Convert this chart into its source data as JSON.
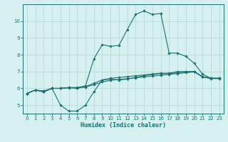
{
  "title": "",
  "xlabel": "Humidex (Indice chaleur)",
  "xlim": [
    -0.5,
    23.5
  ],
  "ylim": [
    4.5,
    11.0
  ],
  "yticks": [
    5,
    6,
    7,
    8,
    9,
    10
  ],
  "xticks": [
    0,
    1,
    2,
    3,
    4,
    5,
    6,
    7,
    8,
    9,
    10,
    11,
    12,
    13,
    14,
    15,
    16,
    17,
    18,
    19,
    20,
    21,
    22,
    23
  ],
  "background_color": "#d6f0f0",
  "grid_color": "#b8dada",
  "line_color": "#1a7070",
  "line1_x": [
    0,
    1,
    2,
    3,
    4,
    5,
    6,
    7,
    8,
    9,
    10,
    11,
    12,
    13,
    14,
    15,
    16,
    17,
    18,
    19,
    20,
    21,
    22,
    23
  ],
  "line1_y": [
    5.7,
    5.9,
    5.8,
    6.0,
    5.0,
    4.65,
    4.65,
    5.0,
    5.8,
    6.5,
    6.55,
    6.5,
    6.55,
    6.65,
    6.75,
    6.82,
    6.88,
    6.88,
    6.92,
    6.97,
    7.0,
    6.7,
    6.6,
    6.6
  ],
  "line2_x": [
    0,
    1,
    2,
    3,
    4,
    5,
    6,
    7,
    8,
    9,
    10,
    11,
    12,
    13,
    14,
    15,
    16,
    17,
    18,
    19,
    20,
    21,
    22,
    23
  ],
  "line2_y": [
    5.7,
    5.9,
    5.85,
    6.0,
    6.0,
    6.05,
    6.05,
    6.15,
    7.75,
    8.6,
    8.5,
    8.55,
    9.5,
    10.4,
    10.6,
    10.4,
    10.45,
    8.1,
    8.1,
    7.9,
    7.5,
    6.85,
    6.6,
    6.6
  ],
  "line3_x": [
    0,
    1,
    2,
    3,
    4,
    5,
    6,
    7,
    8,
    9,
    10,
    11,
    12,
    13,
    14,
    15,
    16,
    17,
    18,
    19,
    20,
    21,
    22,
    23
  ],
  "line3_y": [
    5.7,
    5.9,
    5.8,
    6.0,
    6.0,
    6.05,
    6.0,
    6.1,
    6.3,
    6.5,
    6.6,
    6.65,
    6.7,
    6.75,
    6.8,
    6.85,
    6.9,
    6.9,
    7.0,
    7.0,
    7.0,
    6.7,
    6.6,
    6.6
  ],
  "line4_x": [
    0,
    1,
    2,
    3,
    4,
    5,
    6,
    7,
    8,
    9,
    10,
    11,
    12,
    13,
    14,
    15,
    16,
    17,
    18,
    19,
    20,
    21,
    22,
    23
  ],
  "line4_y": [
    5.7,
    5.9,
    5.8,
    6.0,
    6.0,
    6.03,
    6.03,
    6.08,
    6.22,
    6.38,
    6.48,
    6.53,
    6.58,
    6.63,
    6.68,
    6.73,
    6.78,
    6.83,
    6.88,
    6.93,
    6.98,
    6.68,
    6.58,
    6.58
  ]
}
